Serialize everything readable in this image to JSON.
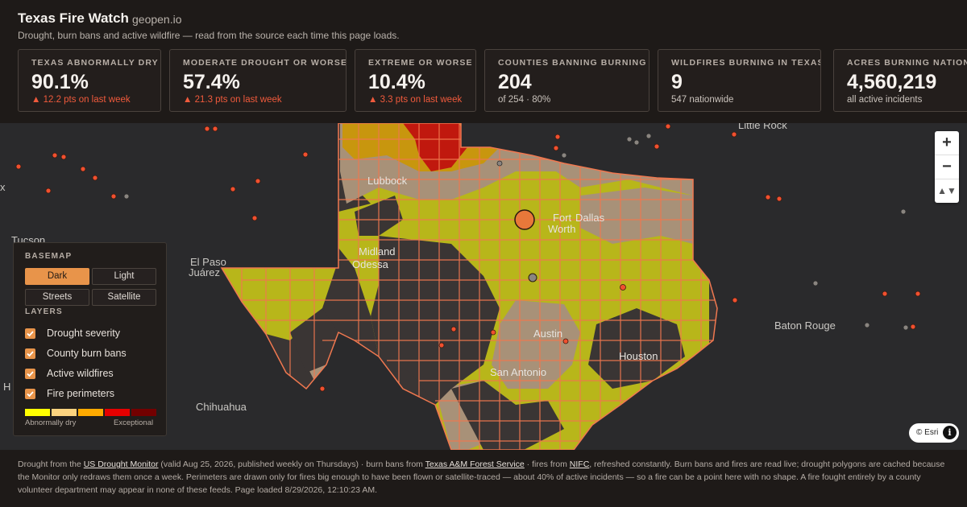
{
  "app": {
    "title": "Texas Fire Watch",
    "site": "geopen.io",
    "subtitle": "Drought, burn bans and active wildfire — read from the source each time this page loads."
  },
  "stats": [
    {
      "label": "TEXAS ABNORMALLY DRY",
      "value": "90.1%",
      "note": "▲ 12.2 pts on last week",
      "trend": "up"
    },
    {
      "label": "MODERATE DROUGHT OR WORSE",
      "value": "57.4%",
      "note": "▲ 21.3 pts on last week",
      "trend": "up"
    },
    {
      "label": "EXTREME OR WORSE",
      "value": "10.4%",
      "note": "▲ 3.3 pts on last week",
      "trend": "up"
    },
    {
      "label": "COUNTIES BANNING BURNING",
      "value": "204",
      "note": "of 254 · 80%",
      "trend": "none"
    },
    {
      "label": "WILDFIRES BURNING IN TEXAS",
      "value": "9",
      "note": "547 nationwide",
      "trend": "none"
    },
    {
      "label": "ACRES BURNING NATIONWIDE",
      "value": "4,560,219",
      "note": "all active incidents",
      "trend": "none"
    }
  ],
  "map": {
    "cities": {
      "little_rock": "Little Rock",
      "lubbock": "Lubbock",
      "fort_worth_1": "Fort",
      "fort_worth_2": "Worth",
      "dallas": "Dallas",
      "midland": "Midland",
      "odessa": "Odessa",
      "el_paso": "El Paso",
      "juarez": "Juárez",
      "austin": "Austin",
      "san_antonio": "San Antonio",
      "houston": "Houston",
      "baton_rouge": "Baton Rouge",
      "chihuahua": "Chihuahua",
      "tucson": "Tucson",
      "edge_x": "x",
      "edge_h": "H"
    },
    "zoom_in": "+",
    "zoom_out": "−",
    "compass": "▲▼",
    "attribution": "© Esri",
    "info": "i"
  },
  "panel": {
    "basemap_heading": "BASEMAP",
    "basemaps": [
      "Dark",
      "Light",
      "Streets",
      "Satellite"
    ],
    "active_basemap": "Dark",
    "layers_heading": "LAYERS",
    "layers": [
      "Drought severity",
      "County burn bans",
      "Active wildfires",
      "Fire perimeters"
    ],
    "legend_low": "Abnormally dry",
    "legend_high": "Exceptional",
    "legend_colors": [
      "#ffff00",
      "#fcd37f",
      "#ffaa00",
      "#e60000",
      "#730000"
    ]
  },
  "colors": {
    "accent": "#e8944a",
    "trend_up": "#f05a3c",
    "fire_point": "#f0502f",
    "county_line": "#f07850",
    "d0_fill": "#b8b61a",
    "d1_fill": "#a89178",
    "d2_fill": "#c8960e",
    "d3_fill": "#c0180e"
  },
  "footer": {
    "t1": "Drought from the ",
    "link_usdm": "US Drought Monitor",
    "t2": " (valid Aug 25, 2026, published weekly on Thursdays) · burn bans from ",
    "link_tamu": "Texas A&M Forest Service",
    "t3": " · fires from ",
    "link_nifc": "NIFC",
    "t4": ", refreshed constantly. Burn bans and fires are read live; drought polygons are cached because the Monitor only redraws them once a week. Perimeters are drawn only for fires big enough to have been flown or satellite-traced — about 40% of active incidents — so a fire can be a point here with no shape. A fire fought entirely by a county volunteer department may appear in none of these feeds. Page loaded 8/29/2026, 12:10:23 AM."
  }
}
